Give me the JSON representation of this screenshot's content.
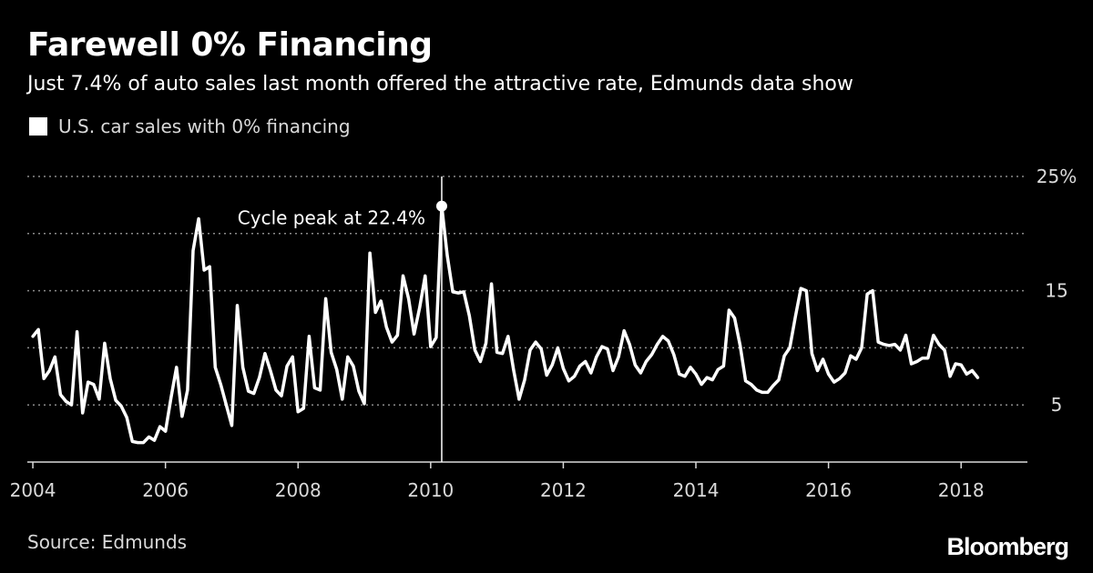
{
  "title": "Farewell 0% Financing",
  "subtitle": "Just 7.4% of auto sales last month offered the attractive rate, Edmunds data show",
  "source": "Source: Edmunds",
  "brand": "Bloomberg",
  "colors": {
    "background": "#000000",
    "line": "#ffffff",
    "grid": "#8a8a8a",
    "text": "#d9d9d9"
  },
  "chart_data": {
    "type": "line",
    "series": [
      {
        "name": "U.S. car sales with 0% financing",
        "x_start": "2004-01",
        "frequency": "monthly",
        "values": [
          11.0,
          11.6,
          7.3,
          8.0,
          9.2,
          5.9,
          5.3,
          5.0,
          11.4,
          4.3,
          7.0,
          6.8,
          5.5,
          10.4,
          7.3,
          5.4,
          4.9,
          3.9,
          1.8,
          1.7,
          1.7,
          2.2,
          1.9,
          3.1,
          2.7,
          5.6,
          8.3,
          4.0,
          6.3,
          18.5,
          21.3,
          16.8,
          17.1,
          8.3,
          6.8,
          5.0,
          3.2,
          13.7,
          8.3,
          6.2,
          6.0,
          7.4,
          9.5,
          8.0,
          6.3,
          5.8,
          8.4,
          9.2,
          4.4,
          4.7,
          11.0,
          6.5,
          6.3,
          14.3,
          9.6,
          8.1,
          5.5,
          9.2,
          8.4,
          6.2,
          5.1,
          18.3,
          13.1,
          14.1,
          11.8,
          10.5,
          11.1,
          16.3,
          14.3,
          11.2,
          13.5,
          16.3,
          10.1,
          10.9,
          22.4,
          18.1,
          14.9,
          14.8,
          14.9,
          12.8,
          9.8,
          8.8,
          10.4,
          15.6,
          9.6,
          9.5,
          11.0,
          8.1,
          5.5,
          7.2,
          9.8,
          10.5,
          9.9,
          7.6,
          8.5,
          10.0,
          8.2,
          7.1,
          7.5,
          8.4,
          8.8,
          7.8,
          9.2,
          10.1,
          9.9,
          8.0,
          9.2,
          11.5,
          10.3,
          8.5,
          7.8,
          8.8,
          9.4,
          10.3,
          11.0,
          10.6,
          9.4,
          7.7,
          7.5,
          8.3,
          7.7,
          6.8,
          7.4,
          7.2,
          8.1,
          8.4,
          13.3,
          12.6,
          10.2,
          7.1,
          6.8,
          6.3,
          6.1,
          6.1,
          6.7,
          7.2,
          9.3,
          10.0,
          12.7,
          15.2,
          15.0,
          9.5,
          8.0,
          9.0,
          7.7,
          7.0,
          7.3,
          7.8,
          9.3,
          9.0,
          10.0,
          14.7,
          15.0,
          10.5,
          10.3,
          10.2,
          10.3,
          9.8,
          11.1,
          8.6,
          8.8,
          9.1,
          9.1,
          11.1,
          10.3,
          9.8,
          7.5,
          8.6,
          8.5,
          7.7,
          8.0,
          7.4
        ]
      }
    ],
    "annotation": {
      "label": "Cycle peak at 22.4%",
      "x": "2010-03",
      "y": 22.4
    },
    "xlabels": [
      "2004",
      "2006",
      "2008",
      "2010",
      "2012",
      "2014",
      "2016",
      "2018"
    ],
    "yticks": [
      5,
      15,
      25
    ],
    "ytick_labels": [
      "5",
      "15",
      "25%"
    ],
    "gridlines": [
      0,
      5,
      10,
      15,
      20,
      25
    ],
    "ylim": [
      0,
      25
    ],
    "xlim": [
      "2003-12",
      "2019-01"
    ],
    "grid": true,
    "legend_position": "top-left"
  }
}
